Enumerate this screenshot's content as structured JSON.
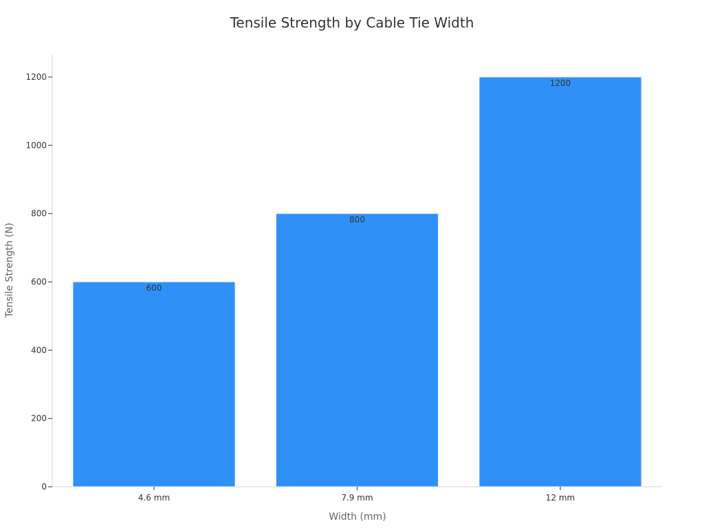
{
  "chart_data": {
    "type": "bar",
    "title": "Tensile Strength by Cable Tie Width",
    "xlabel": "Width (mm)",
    "ylabel": "Tensile Strength (N)",
    "categories": [
      "4.6 mm",
      "7.9 mm",
      "12 mm"
    ],
    "values": [
      600,
      800,
      1200
    ],
    "data_labels": [
      "600",
      "800",
      "1200"
    ],
    "ylim": [
      0,
      1260
    ],
    "yticks": [
      0,
      200,
      400,
      600,
      800,
      1000,
      1200
    ],
    "grid": false,
    "legend": "none",
    "colors": {
      "bar": "#2f91f8",
      "text": "#333333",
      "axis": "#d0d0d0"
    }
  }
}
